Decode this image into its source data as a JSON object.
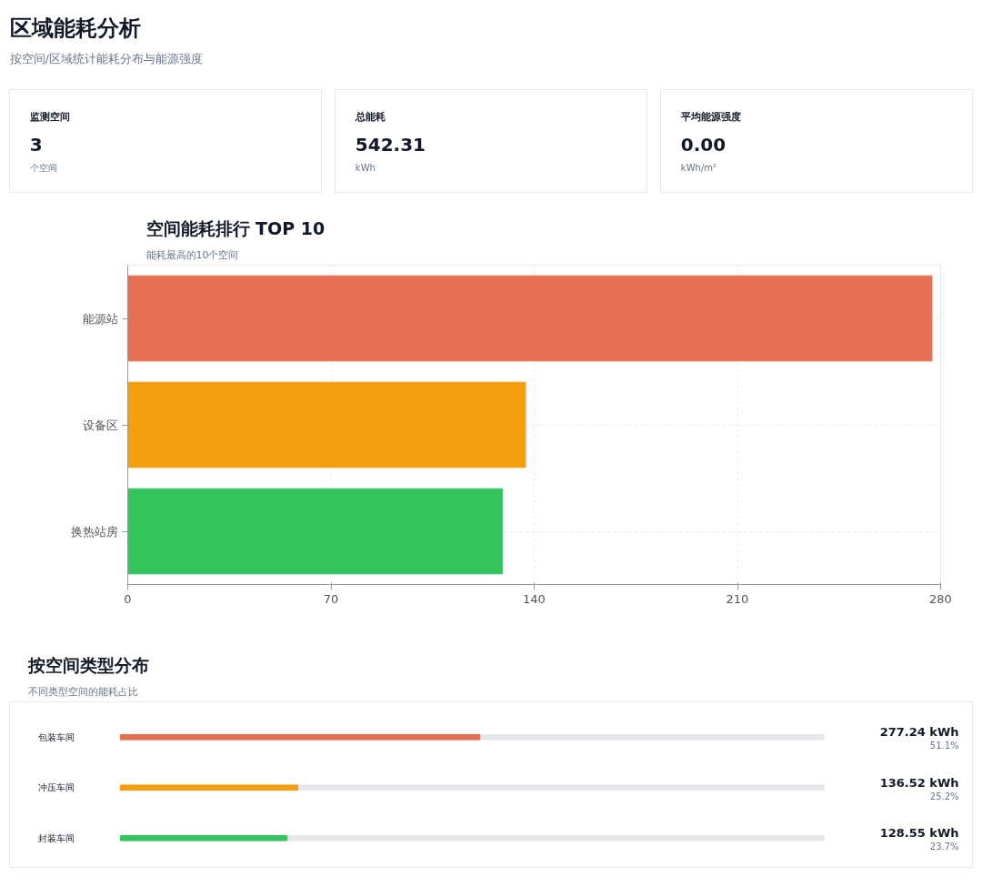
{
  "chart_data": [
    {
      "type": "other",
      "title": "区域能耗分析",
      "subtitle": "按空间/区域统计能耗分布与能源强度"
    },
    {
      "type": "other",
      "title": "监测空间",
      "annotations": [
        "3",
        "个空间"
      ]
    },
    {
      "type": "other",
      "title": "总能耗",
      "annotations": [
        "542.31",
        "kWh"
      ]
    },
    {
      "type": "other",
      "title": "平均能源强度",
      "annotations": [
        "0.00",
        "kWh/m²"
      ]
    },
    {
      "type": "bar",
      "orientation": "horizontal",
      "title": "空间能耗排行 TOP 10",
      "subtitle": "能耗最高的10个空间",
      "categories": [
        "能源站",
        "设备区",
        "换热站房"
      ],
      "values": [
        277,
        137,
        129
      ],
      "colors": [
        "#e76f51",
        "#f59e0b",
        "#34c55e"
      ],
      "xlim": [
        0,
        280
      ],
      "xticks": [
        0,
        70,
        140,
        210,
        280
      ],
      "grid": true
    },
    {
      "type": "bar",
      "orientation": "horizontal",
      "title": "按空间类型分布",
      "subtitle": "不同类型空间的能耗占比",
      "categories": [
        "包装车间",
        "冲压车间",
        "封装车间"
      ],
      "values": [
        51.1,
        25.2,
        23.7
      ],
      "colors": [
        "#e76f51",
        "#f59e0b",
        "#34c55e"
      ],
      "xlim": [
        0,
        100
      ],
      "tick_labels": false,
      "value_labels": [
        "51.1%",
        "25.2%",
        "23.7%"
      ],
      "annotations": [
        "277.24 kWh",
        "136.52 kWh",
        "128.55 kWh"
      ]
    }
  ]
}
